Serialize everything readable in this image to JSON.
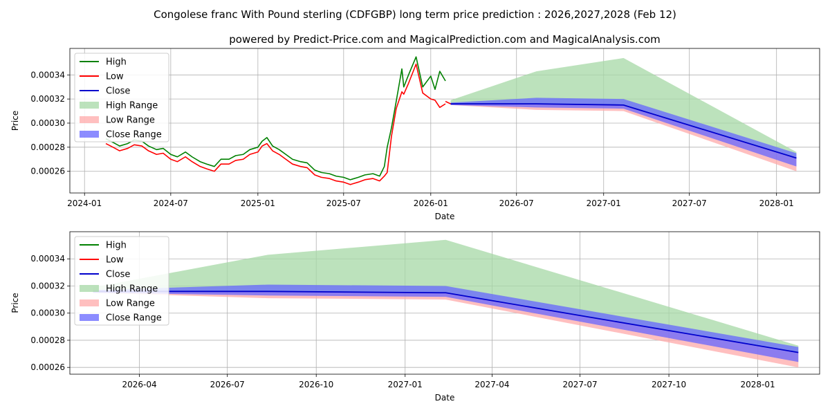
{
  "title": "Congolese franc With Pound sterling (CDFGBP) long term price prediction : 2026,2027,2028 (Feb 12)",
  "subtitle": "powered by Predict-Price.com and MagicalPrediction.com and MagicalAnalysis.com",
  "watermark": "Predict-Price.com",
  "colors": {
    "high": "#008000",
    "low": "#ff0000",
    "close": "#0000cc",
    "high_range": "#a6d8a6",
    "low_range": "#ffaaaa",
    "close_range": "#6666ff"
  },
  "legend": [
    "High",
    "Low",
    "Close",
    "High Range",
    "Low Range",
    "Close Range"
  ],
  "chart_data": [
    {
      "type": "line",
      "xlabel": "Date",
      "ylabel": "Price",
      "xlim": [
        "2023-12-01",
        "2028-04-01"
      ],
      "ylim": [
        0.000242,
        0.000362
      ],
      "x_ticks": [
        "2024-01",
        "2024-07",
        "2025-01",
        "2025-07",
        "2026-01",
        "2026-07",
        "2027-01",
        "2027-07",
        "2028-01"
      ],
      "y_ticks": [
        0.00026,
        0.00028,
        0.0003,
        0.00032,
        0.00034
      ],
      "legend_position": "upper left",
      "grid": true,
      "history": {
        "dates": [
          "2024-02-15",
          "2024-03-01",
          "2024-03-15",
          "2024-04-01",
          "2024-04-15",
          "2024-05-01",
          "2024-05-15",
          "2024-06-01",
          "2024-06-15",
          "2024-07-01",
          "2024-07-15",
          "2024-08-01",
          "2024-08-15",
          "2024-09-01",
          "2024-09-15",
          "2024-10-01",
          "2024-10-15",
          "2024-11-01",
          "2024-11-15",
          "2024-12-01",
          "2024-12-15",
          "2025-01-01",
          "2025-01-10",
          "2025-01-20",
          "2025-02-01",
          "2025-02-15",
          "2025-03-01",
          "2025-03-15",
          "2025-04-01",
          "2025-04-15",
          "2025-05-01",
          "2025-05-15",
          "2025-06-01",
          "2025-06-15",
          "2025-07-01",
          "2025-07-15",
          "2025-08-01",
          "2025-08-15",
          "2025-09-01",
          "2025-09-15",
          "2025-09-25",
          "2025-10-01",
          "2025-10-10",
          "2025-10-20",
          "2025-11-01",
          "2025-11-05",
          "2025-11-15",
          "2025-12-01",
          "2025-12-15",
          "2026-01-01",
          "2026-01-10",
          "2026-01-20",
          "2026-02-01"
        ],
        "close": [
          0.000285,
          0.000282,
          0.000279,
          0.000281,
          0.000284,
          0.000283,
          0.000279,
          0.000276,
          0.000277,
          0.000272,
          0.00027,
          0.000274,
          0.00027,
          0.000266,
          0.000264,
          0.000262,
          0.000268,
          0.000268,
          0.000271,
          0.000272,
          0.000276,
          0.000278,
          0.000283,
          0.000285,
          0.000279,
          0.000276,
          0.000272,
          0.000268,
          0.000266,
          0.000265,
          0.000259,
          0.000257,
          0.000256,
          0.000254,
          0.000253,
          0.000251,
          0.000253,
          0.000255,
          0.000256,
          0.000254,
          0.000258,
          0.000262,
          0.000292,
          0.000315,
          0.000332,
          0.000326,
          0.000336,
          0.000353,
          0.000328,
          0.000323,
          0.000322,
          0.000318,
          0.000318
        ],
        "high": [
          0.000287,
          0.000284,
          0.000281,
          0.000283,
          0.000286,
          0.000285,
          0.000281,
          0.000278,
          0.000279,
          0.000274,
          0.000272,
          0.000276,
          0.000272,
          0.000268,
          0.000266,
          0.000264,
          0.00027,
          0.00027,
          0.000273,
          0.000274,
          0.000278,
          0.00028,
          0.000285,
          0.000288,
          0.000281,
          0.000278,
          0.000274,
          0.00027,
          0.000268,
          0.000267,
          0.000261,
          0.000259,
          0.000258,
          0.000256,
          0.000255,
          0.000253,
          0.000255,
          0.000257,
          0.000258,
          0.000256,
          0.000264,
          0.00028,
          0.000296,
          0.000318,
          0.000345,
          0.00033,
          0.00034,
          0.000355,
          0.00033,
          0.000339,
          0.000328,
          0.000343,
          0.000335
        ],
        "low": [
          0.000283,
          0.00028,
          0.000277,
          0.000279,
          0.000282,
          0.000281,
          0.000277,
          0.000274,
          0.000275,
          0.00027,
          0.000268,
          0.000272,
          0.000268,
          0.000264,
          0.000262,
          0.00026,
          0.000266,
          0.000266,
          0.000269,
          0.00027,
          0.000274,
          0.000276,
          0.000281,
          0.000283,
          0.000277,
          0.000274,
          0.00027,
          0.000266,
          0.000264,
          0.000263,
          0.000257,
          0.000255,
          0.000254,
          0.000252,
          0.000251,
          0.000249,
          0.000251,
          0.000253,
          0.000254,
          0.000252,
          0.000256,
          0.000259,
          0.000289,
          0.000312,
          0.000326,
          0.000324,
          0.000333,
          0.000349,
          0.000325,
          0.00032,
          0.000319,
          0.000313,
          0.000316
        ]
      },
      "forecast": {
        "dates": [
          "2026-02-12",
          "2026-08-12",
          "2027-02-12",
          "2028-02-12"
        ],
        "close": [
          0.000316,
          0.000316,
          0.000315,
          0.000271
        ],
        "high_range": [
          [
            0.000316,
            0.000319
          ],
          [
            0.000316,
            0.000343
          ],
          [
            0.000315,
            0.000354
          ],
          [
            0.000271,
            0.000276
          ]
        ],
        "low_range": [
          [
            0.000315,
            0.000316
          ],
          [
            0.000311,
            0.000316
          ],
          [
            0.00031,
            0.000315
          ],
          [
            0.00026,
            0.000271
          ]
        ],
        "close_range": [
          [
            0.000315,
            0.000317
          ],
          [
            0.000313,
            0.000321
          ],
          [
            0.000312,
            0.00032
          ],
          [
            0.000264,
            0.000275
          ]
        ]
      }
    },
    {
      "type": "line",
      "xlabel": "Date",
      "ylabel": "Price",
      "xlim": [
        "2026-01-19",
        "2028-03-05"
      ],
      "ylim": [
        0.000255,
        0.00036
      ],
      "x_ticks": [
        "2026-04",
        "2026-07",
        "2026-10",
        "2027-01",
        "2027-04",
        "2027-07",
        "2027-10",
        "2028-01"
      ],
      "y_ticks": [
        0.00026,
        0.00028,
        0.0003,
        0.00032,
        0.00034
      ],
      "legend_position": "upper left",
      "grid": true,
      "forecast": {
        "dates": [
          "2026-02-12",
          "2026-08-12",
          "2027-02-12",
          "2028-02-12"
        ],
        "close": [
          0.000316,
          0.000316,
          0.000315,
          0.000271
        ],
        "high_range": [
          [
            0.000316,
            0.000319
          ],
          [
            0.000316,
            0.000343
          ],
          [
            0.000315,
            0.000354
          ],
          [
            0.000271,
            0.000276
          ]
        ],
        "low_range": [
          [
            0.000315,
            0.000316
          ],
          [
            0.000311,
            0.000316
          ],
          [
            0.00031,
            0.000315
          ],
          [
            0.00026,
            0.000271
          ]
        ],
        "close_range": [
          [
            0.000315,
            0.000317
          ],
          [
            0.000313,
            0.000321
          ],
          [
            0.000312,
            0.00032
          ],
          [
            0.000264,
            0.000275
          ]
        ]
      }
    }
  ]
}
